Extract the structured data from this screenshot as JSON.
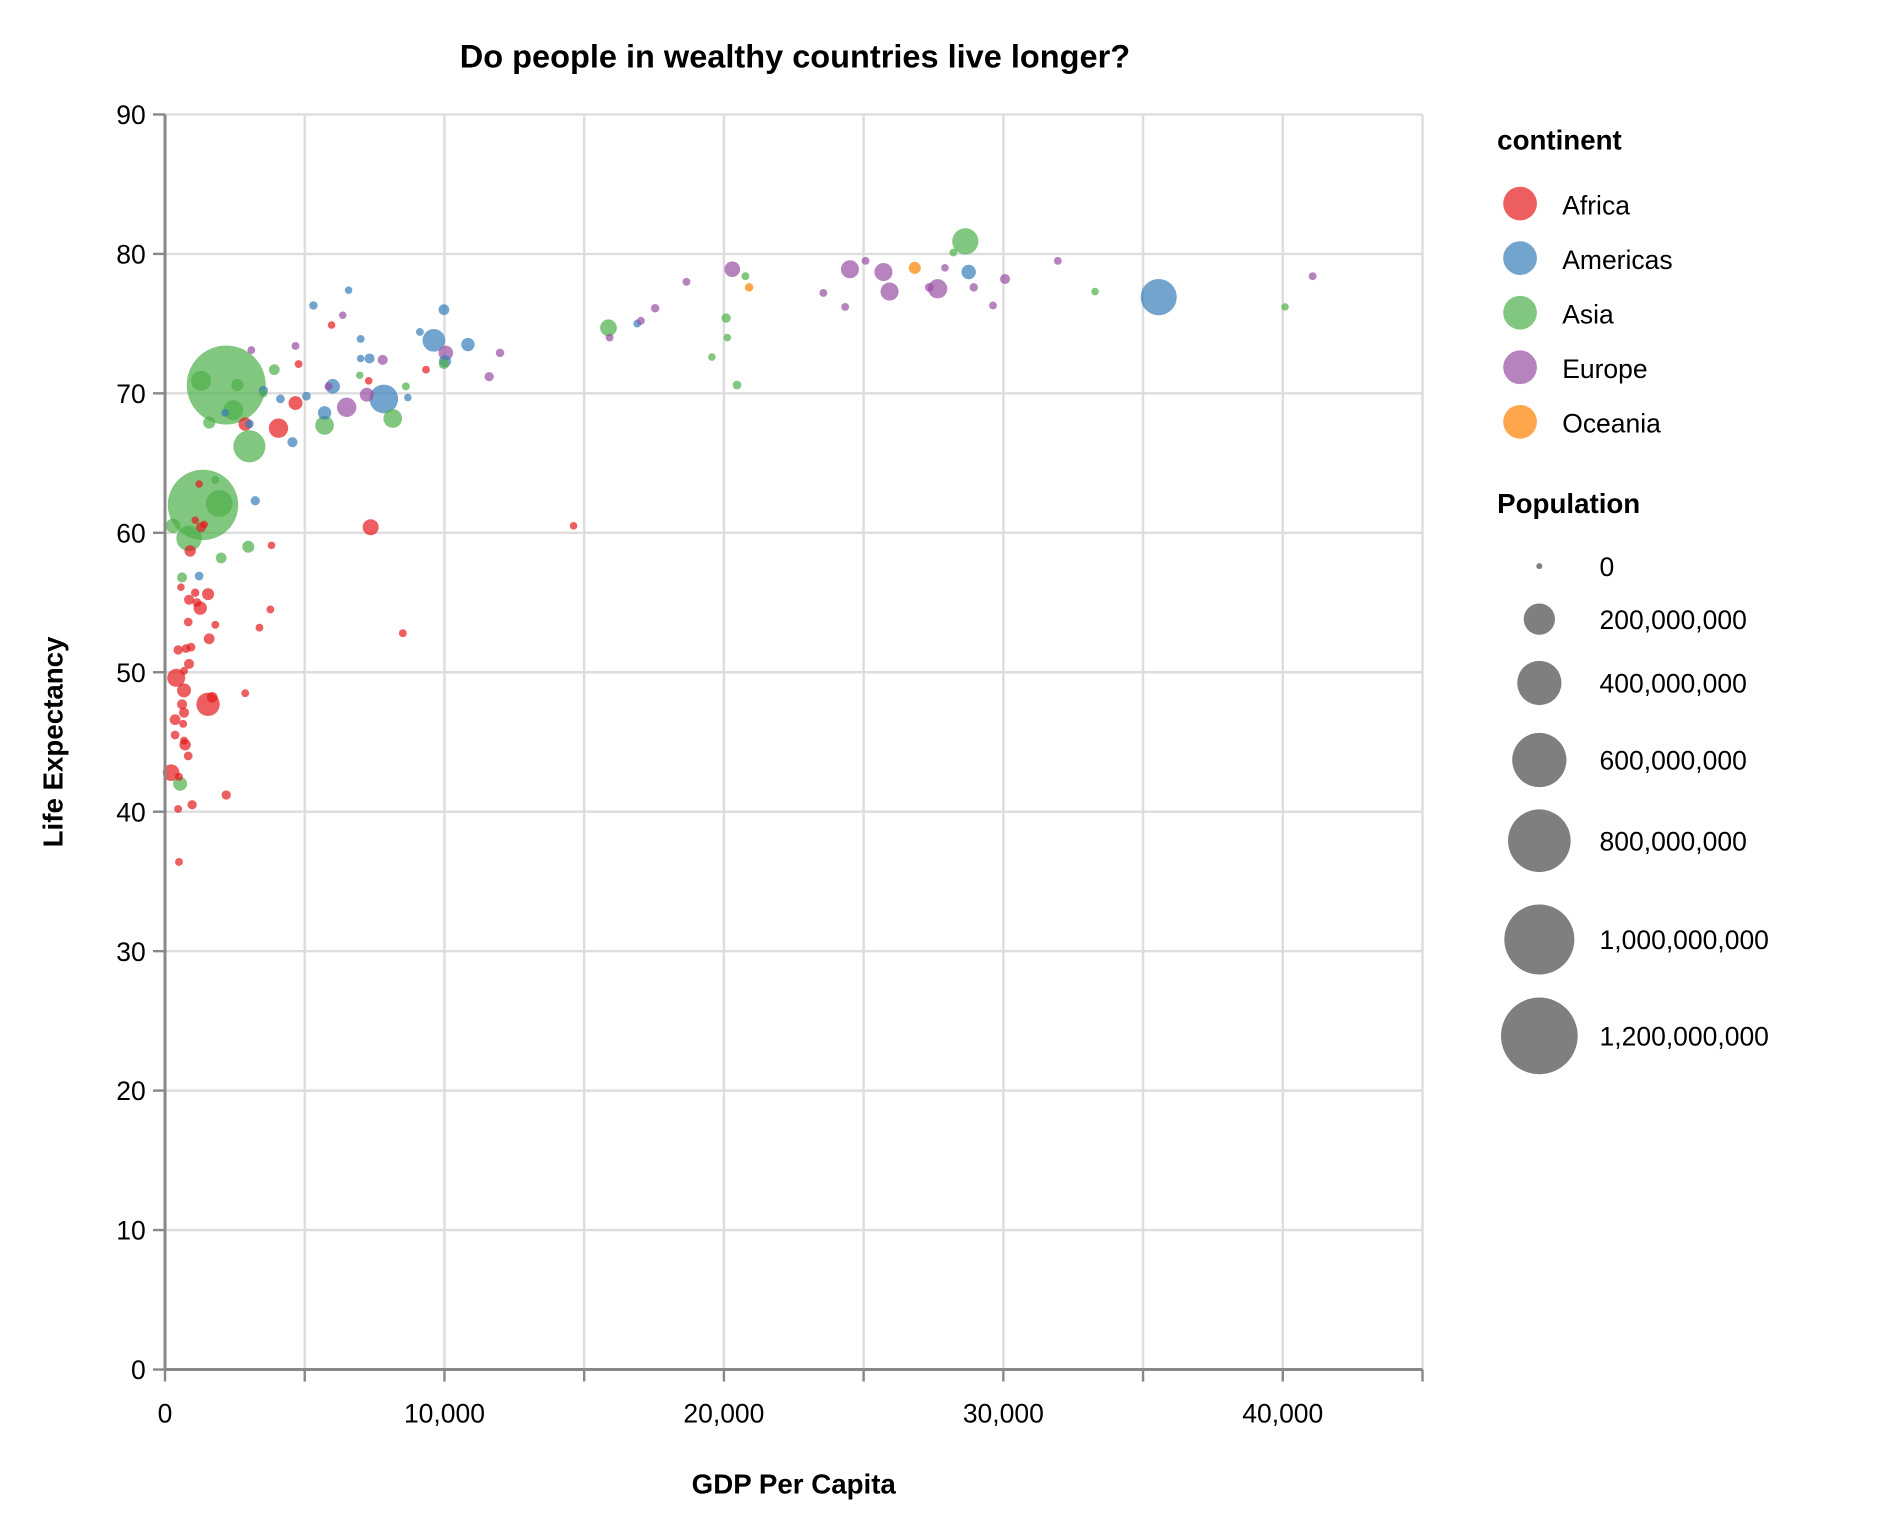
{
  "chart_data": {
    "type": "scatter",
    "title": "Do people in wealthy countries live longer?",
    "xlabel": "GDP Per Capita",
    "ylabel": "Life Expectancy",
    "xlim": [
      0,
      45000
    ],
    "ylim": [
      0,
      90
    ],
    "x_ticks": [
      {
        "value": 0,
        "label": "0"
      },
      {
        "value": 10000,
        "label": "10,000"
      },
      {
        "value": 20000,
        "label": "20,000"
      },
      {
        "value": 30000,
        "label": "30,000"
      },
      {
        "value": 40000,
        "label": "40,000"
      }
    ],
    "y_ticks": [
      {
        "value": 0,
        "label": "0"
      },
      {
        "value": 10,
        "label": "10"
      },
      {
        "value": 20,
        "label": "20"
      },
      {
        "value": 30,
        "label": "30"
      },
      {
        "value": 40,
        "label": "40"
      },
      {
        "value": 50,
        "label": "50"
      },
      {
        "value": 60,
        "label": "60"
      },
      {
        "value": 70,
        "label": "70"
      },
      {
        "value": 80,
        "label": "80"
      },
      {
        "value": 90,
        "label": "90"
      }
    ],
    "grid": true,
    "point_opacity": 0.7,
    "point_fields": [
      "gdp_per_capita",
      "life_expectancy",
      "population_millions"
    ],
    "series": [
      {
        "name": "Africa",
        "color": "#e41a1c",
        "points": [
          [
            570,
            56.1,
            1
          ],
          [
            1080,
            55.7,
            4
          ],
          [
            1540,
            55.6,
            19
          ],
          [
            860,
            55.2,
            10
          ],
          [
            1140,
            55.0,
            5
          ],
          [
            1260,
            54.6,
            26
          ],
          [
            3770,
            54.5,
            2
          ],
          [
            830,
            53.6,
            5
          ],
          [
            1800,
            53.4,
            2
          ],
          [
            3380,
            53.2,
            2
          ],
          [
            8510,
            52.8,
            2
          ],
          [
            1580,
            52.4,
            13
          ],
          [
            470,
            51.6,
            7
          ],
          [
            750,
            51.7,
            5
          ],
          [
            930,
            51.8,
            5
          ],
          [
            860,
            50.6,
            10
          ],
          [
            680,
            50.1,
            2
          ],
          [
            400,
            49.6,
            56
          ],
          [
            680,
            48.7,
            29
          ],
          [
            1540,
            47.7,
            101
          ],
          [
            1690,
            48.2,
            13
          ],
          [
            2870,
            48.5,
            2
          ],
          [
            610,
            47.7,
            10
          ],
          [
            680,
            47.1,
            10
          ],
          [
            360,
            46.6,
            13
          ],
          [
            650,
            46.3,
            2
          ],
          [
            360,
            45.5,
            5
          ],
          [
            680,
            45.1,
            2
          ],
          [
            720,
            44.8,
            16
          ],
          [
            830,
            44.0,
            5
          ],
          [
            220,
            42.8,
            46
          ],
          [
            500,
            42.5,
            2
          ],
          [
            2190,
            41.2,
            7
          ],
          [
            970,
            40.5,
            7
          ],
          [
            470,
            40.2,
            2
          ],
          [
            500,
            36.4,
            2
          ],
          [
            4780,
            72.1,
            2
          ],
          [
            5960,
            74.9,
            1
          ],
          [
            7290,
            70.9,
            1
          ],
          [
            9340,
            71.7,
            2
          ],
          [
            4670,
            69.3,
            29
          ],
          [
            2870,
            67.8,
            26
          ],
          [
            4060,
            67.5,
            66
          ],
          [
            7360,
            60.4,
            42
          ],
          [
            1220,
            63.5,
            1
          ],
          [
            1290,
            60.4,
            10
          ],
          [
            1400,
            60.6,
            1
          ],
          [
            900,
            58.7,
            16
          ],
          [
            3810,
            59.1,
            1
          ],
          [
            1080,
            60.9,
            1
          ],
          [
            14620,
            60.5,
            1
          ]
        ]
      },
      {
        "name": "Americas",
        "color": "#377eb8",
        "points": [
          [
            6570,
            77.4,
            1
          ],
          [
            5310,
            76.3,
            4
          ],
          [
            7000,
            73.9,
            2
          ],
          [
            7000,
            72.5,
            1
          ],
          [
            7320,
            72.5,
            10
          ],
          [
            9120,
            74.4,
            2
          ],
          [
            9620,
            73.8,
            94
          ],
          [
            9980,
            76.0,
            13
          ],
          [
            10840,
            73.5,
            26
          ],
          [
            10020,
            72.3,
            19
          ],
          [
            7830,
            69.6,
            157
          ],
          [
            8690,
            69.7,
            1
          ],
          [
            5060,
            69.8,
            5
          ],
          [
            4130,
            69.6,
            5
          ],
          [
            3520,
            70.2,
            7
          ],
          [
            6000,
            70.5,
            33
          ],
          [
            5710,
            68.6,
            26
          ],
          [
            3020,
            67.8,
            5
          ],
          [
            4560,
            66.5,
            10
          ],
          [
            2150,
            68.6,
            2
          ],
          [
            3230,
            62.3,
            7
          ],
          [
            1220,
            56.9,
            5
          ],
          [
            35560,
            76.9,
            256
          ],
          [
            28760,
            78.7,
            32
          ],
          [
            16900,
            75.0,
            2
          ]
        ]
      },
      {
        "name": "Asia",
        "color": "#4daf4a",
        "points": [
          [
            2190,
            70.6,
            1260
          ],
          [
            1360,
            62.0,
            1000
          ],
          [
            1290,
            70.9,
            71
          ],
          [
            2590,
            70.6,
            19
          ],
          [
            2440,
            68.8,
            71
          ],
          [
            1580,
            67.9,
            19
          ],
          [
            3020,
            66.2,
            199
          ],
          [
            1940,
            62.1,
            135
          ],
          [
            860,
            59.6,
            122
          ],
          [
            290,
            60.5,
            33
          ],
          [
            1800,
            63.8,
            2
          ],
          [
            2980,
            59.0,
            19
          ],
          [
            2010,
            58.2,
            13
          ],
          [
            3910,
            71.7,
            13
          ],
          [
            6970,
            71.3,
            1
          ],
          [
            5710,
            67.7,
            61
          ],
          [
            8150,
            68.2,
            61
          ],
          [
            8620,
            70.5,
            2
          ],
          [
            9980,
            72.1,
            10
          ],
          [
            3520,
            70.0,
            2
          ],
          [
            610,
            56.8,
            10
          ],
          [
            540,
            42.0,
            29
          ],
          [
            28640,
            80.9,
            130
          ],
          [
            15870,
            74.7,
            47
          ],
          [
            20770,
            78.4,
            2
          ],
          [
            20080,
            75.4,
            7
          ],
          [
            20120,
            74.0,
            1
          ],
          [
            19570,
            72.6,
            1
          ],
          [
            20470,
            70.6,
            5
          ],
          [
            28210,
            80.1,
            2
          ],
          [
            33280,
            77.3,
            1
          ],
          [
            40080,
            76.2,
            1
          ]
        ]
      },
      {
        "name": "Europe",
        "color": "#984ea3",
        "points": [
          [
            6360,
            75.6,
            1
          ],
          [
            3090,
            73.1,
            2
          ],
          [
            4670,
            73.4,
            2
          ],
          [
            7790,
            72.4,
            10
          ],
          [
            10050,
            72.9,
            33
          ],
          [
            11600,
            71.2,
            7
          ],
          [
            11990,
            72.9,
            4
          ],
          [
            7220,
            69.9,
            29
          ],
          [
            6500,
            69.0,
            66
          ],
          [
            5850,
            70.5,
            2
          ],
          [
            18660,
            78.0,
            2
          ],
          [
            17540,
            76.1,
            4
          ],
          [
            17030,
            75.2,
            2
          ],
          [
            15910,
            74.0,
            2
          ],
          [
            23560,
            77.2,
            2
          ],
          [
            24340,
            76.2,
            2
          ],
          [
            25070,
            79.5,
            2
          ],
          [
            27910,
            79.0,
            1
          ],
          [
            27350,
            77.6,
            5
          ],
          [
            28940,
            77.6,
            4
          ],
          [
            29630,
            76.3,
            2
          ],
          [
            30060,
            78.2,
            10
          ],
          [
            31950,
            79.5,
            2
          ],
          [
            41070,
            78.4,
            2
          ],
          [
            20300,
            78.9,
            39
          ],
          [
            24510,
            78.9,
            56
          ],
          [
            25710,
            78.7,
            56
          ],
          [
            25930,
            77.3,
            56
          ],
          [
            27650,
            77.5,
            65
          ]
        ]
      },
      {
        "name": "Oceania",
        "color": "#ff7f00",
        "points": [
          [
            26830,
            79.0,
            19
          ],
          [
            20900,
            77.6,
            4
          ]
        ]
      }
    ],
    "legend": {
      "placement": "right",
      "color_title": "continent",
      "size_title": "Population",
      "size_entries": [
        {
          "value": 0,
          "label": "0"
        },
        {
          "value": 200000000,
          "label": "200,000,000"
        },
        {
          "value": 400000000,
          "label": "400,000,000"
        },
        {
          "value": 600000000,
          "label": "600,000,000"
        },
        {
          "value": 800000000,
          "label": "800,000,000"
        },
        {
          "value": 1000000000,
          "label": "1,000,000,000"
        },
        {
          "value": 1200000000,
          "label": "1,200,000,000"
        }
      ]
    }
  }
}
